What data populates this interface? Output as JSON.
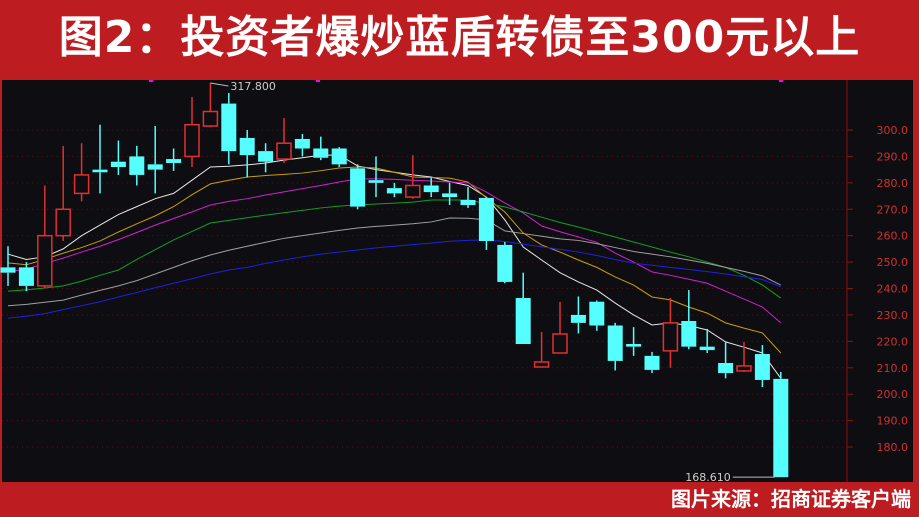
{
  "title": "图2：投资者爆炒蓝盾转债至300元以上",
  "footer": "图片来源：招商证券客户端",
  "colors": {
    "up": "#e03030",
    "down": "#55ffff",
    "background": "#0e0e12",
    "frame": "#bd1c20",
    "axis_text": "#d03030"
  },
  "chart_data": {
    "type": "candlestick",
    "ylim": [
      165,
      322
    ],
    "y_ticks": [
      180,
      190,
      200,
      210,
      220,
      230,
      240,
      250,
      260,
      270,
      280,
      290,
      300
    ],
    "y_tick_labels": [
      "180.0",
      "190.0",
      "200.0",
      "210.0",
      "220.0",
      "230.0",
      "240.0",
      "250.0",
      "260.0",
      "270.0",
      "280.0",
      "290.0",
      "300.0"
    ],
    "grid": true,
    "annotations": {
      "high": "317.800",
      "low": "168.610"
    },
    "candles": [
      [
        248,
        246,
        256,
        241
      ],
      [
        248,
        241,
        250,
        239
      ],
      [
        241,
        260,
        279,
        240
      ],
      [
        260,
        270,
        294,
        258
      ],
      [
        276,
        283,
        295,
        273
      ],
      [
        285,
        284,
        302,
        276
      ],
      [
        288,
        286,
        296,
        283
      ],
      [
        290,
        283,
        294,
        279
      ],
      [
        287,
        285,
        301.5,
        276
      ],
      [
        289,
        287.5,
        293,
        284.5
      ],
      [
        290,
        302,
        312.5,
        286
      ],
      [
        301.5,
        307,
        317.8,
        301
      ],
      [
        310,
        292,
        314,
        287
      ],
      [
        297,
        290.5,
        300,
        282
      ],
      [
        292,
        288,
        295,
        284
      ],
      [
        289,
        295,
        304.5,
        287.5
      ],
      [
        296.6,
        293,
        298.5,
        290
      ],
      [
        293,
        289.5,
        297.5,
        288.6
      ],
      [
        293,
        287,
        293.5,
        286
      ],
      [
        285.5,
        271,
        287,
        270
      ],
      [
        281,
        280,
        290,
        274.6
      ],
      [
        278,
        276,
        280,
        274.6
      ],
      [
        274.6,
        279,
        290.5,
        274
      ],
      [
        279,
        276.5,
        282,
        274.6
      ],
      [
        276,
        274.6,
        280,
        271.6
      ],
      [
        273.5,
        271.6,
        278.4,
        270.5
      ],
      [
        274.3,
        258,
        274.5,
        254.6
      ],
      [
        256.5,
        242.5,
        257.6,
        242
      ],
      [
        236.4,
        219,
        246,
        219
      ],
      [
        210.3,
        212.2,
        223.5,
        210.3
      ],
      [
        215.6,
        222.8,
        235,
        215.5
      ],
      [
        230,
        227,
        237,
        223
      ],
      [
        235,
        226,
        235.5,
        224
      ],
      [
        226,
        212.6,
        227,
        209
      ],
      [
        219,
        218,
        225.4,
        214.5
      ],
      [
        214.5,
        209.2,
        216,
        208
      ],
      [
        216.4,
        227,
        236.4,
        210
      ],
      [
        227.7,
        218,
        239.4,
        217
      ],
      [
        218,
        216.7,
        224.7,
        215.6
      ],
      [
        211.8,
        208,
        219.8,
        206
      ],
      [
        208.8,
        210.7,
        219.8,
        208.4
      ],
      [
        215.2,
        205.4,
        218.6,
        202.7
      ],
      [
        205.8,
        168.61,
        208.4,
        168.61
      ]
    ],
    "moving_averages": [
      {
        "color": "#e8e8e8",
        "values": [
          253,
          251,
          252,
          255,
          260,
          264,
          268,
          271,
          274,
          276,
          281,
          286,
          286.3,
          286.8,
          287.5,
          288.6,
          289.5,
          290.5,
          290.5,
          286.4,
          285,
          284,
          283,
          282.2,
          280.5,
          279,
          274.6,
          266,
          255.7,
          250.8,
          246,
          242.5,
          239.4,
          234.5,
          230,
          226.2,
          227,
          226,
          224.3,
          219.8,
          217.8,
          215.6,
          206
        ]
      },
      {
        "color": "#c8a000",
        "values": [
          249.7,
          249,
          251,
          253.4,
          255.5,
          258,
          261.4,
          264.5,
          267.5,
          271,
          275.5,
          279.6,
          281,
          282.2,
          282.8,
          283.2,
          283.7,
          284.6,
          285.6,
          286,
          285.6,
          284,
          282.2,
          282,
          281.8,
          280.3,
          274.3,
          269,
          261,
          256.5,
          253.8,
          250.8,
          248,
          244.4,
          241.3,
          236.8,
          235.7,
          233,
          230.7,
          227,
          225,
          223.2,
          215.6
        ]
      },
      {
        "color": "#d020d0",
        "values": [
          246.3,
          247.4,
          249.5,
          251.5,
          253.8,
          256,
          258.5,
          261.2,
          264,
          266.5,
          269,
          271.6,
          273,
          274,
          275.4,
          276.6,
          277.8,
          279,
          280.3,
          281.5,
          281.5,
          281.3,
          281,
          280.7,
          280.3,
          280,
          276.5,
          272.4,
          268.6,
          263.7,
          261.5,
          259.5,
          257.5,
          253.4,
          250,
          246.3,
          245,
          243.5,
          242,
          239,
          236,
          233,
          227
        ]
      },
      {
        "color": "#10a020",
        "values": [
          239,
          239.5,
          240.2,
          241,
          242.8,
          245,
          247,
          251,
          254.7,
          258.4,
          261.6,
          264.8,
          265.8,
          266.8,
          267.8,
          268.7,
          269.6,
          270.5,
          271.2,
          271.6,
          272,
          272.3,
          272.7,
          273.5,
          273.5,
          273.5,
          272.2,
          270.9,
          269,
          267,
          265,
          263.3,
          261.4,
          259.5,
          257.6,
          255.7,
          253.8,
          252,
          250,
          248,
          245,
          241.3,
          236.4
        ]
      },
      {
        "color": "#a0a0a0",
        "values": [
          233.5,
          234,
          234.8,
          235.6,
          237.5,
          239.3,
          241,
          243,
          245.5,
          248,
          250.5,
          252.7,
          254.5,
          256,
          257.5,
          259,
          260,
          261,
          262,
          262.9,
          263.5,
          264,
          264.5,
          265.2,
          266.7,
          266.6,
          266,
          261.8,
          260.8,
          259.8,
          258.8,
          258.2,
          257,
          255.5,
          254,
          253,
          252,
          250.8,
          249.5,
          248,
          246.5,
          244.8,
          241.3
        ]
      },
      {
        "color": "#2020e0",
        "values": [
          228.8,
          229.5,
          230.5,
          232,
          233.5,
          235,
          236.8,
          238.5,
          240.3,
          242,
          243.7,
          245.5,
          247,
          248,
          249.5,
          250.8,
          252,
          253,
          253.8,
          254.6,
          255.4,
          256,
          256.6,
          257.2,
          257.9,
          258.2,
          258.4,
          257.8,
          256.8,
          255.8,
          254.8,
          253.8,
          252.5,
          251,
          249.6,
          248.8,
          248,
          247.2,
          246.4,
          245.5,
          244.4,
          243.4,
          240.6
        ]
      }
    ]
  }
}
